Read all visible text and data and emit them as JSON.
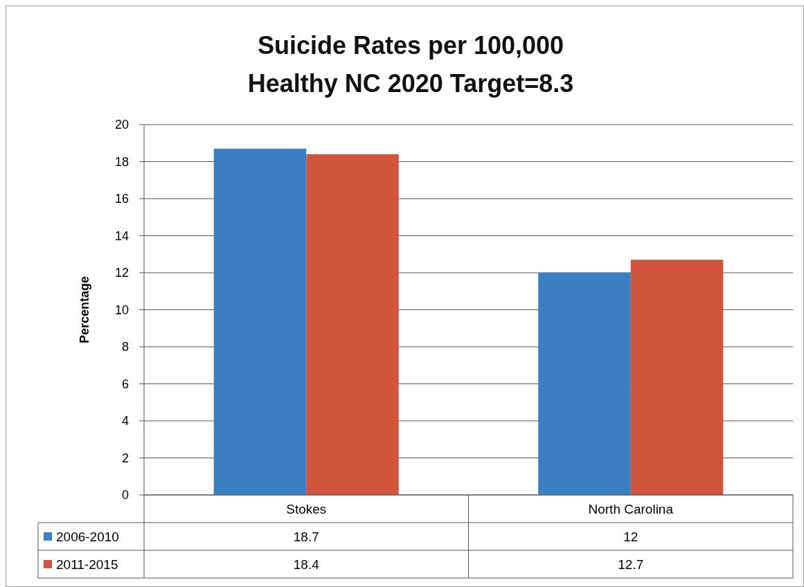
{
  "chart_data": {
    "type": "bar",
    "title": "Suicide Rates per 100,000\nHealthy NC 2020 Target=8.3",
    "ylabel": "Percentage",
    "categories": [
      "Stokes",
      "North Carolina"
    ],
    "series": [
      {
        "name": "2006-2010",
        "color": "#3a7fc1",
        "values": [
          18.7,
          12
        ]
      },
      {
        "name": "2011-2015",
        "color": "#d0553c",
        "values": [
          18.4,
          12.7
        ]
      }
    ],
    "ylim": [
      0,
      20
    ],
    "yticks": [
      0,
      2,
      4,
      6,
      8,
      10,
      12,
      14,
      16,
      18,
      20
    ],
    "grid": "y",
    "legend": "bottom left",
    "data_labels": true
  }
}
